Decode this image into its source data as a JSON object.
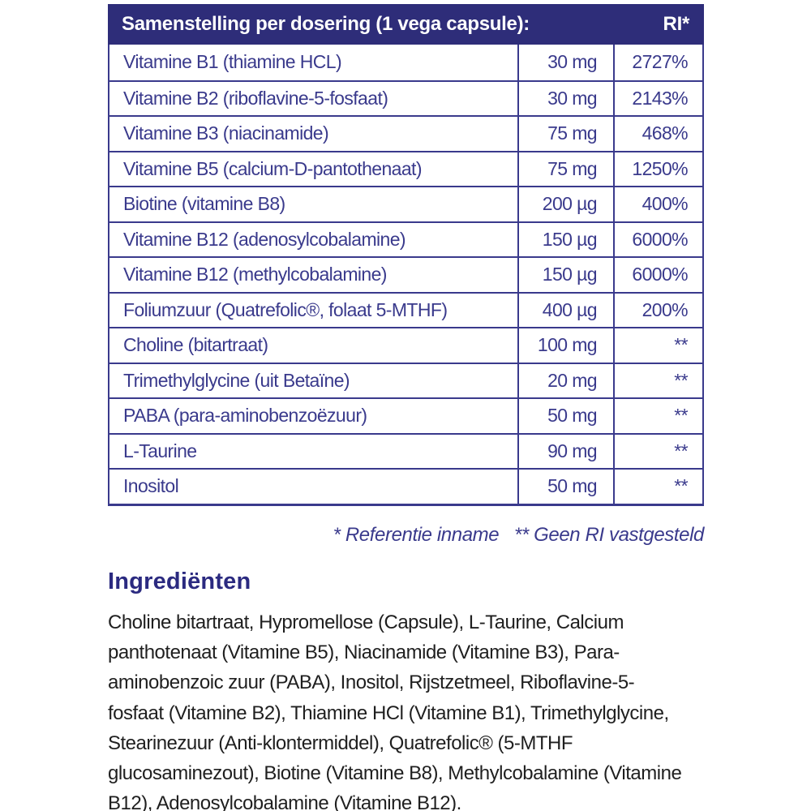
{
  "colors": {
    "header_bg": "#2e2d79",
    "table_ink": "#3a3a8c",
    "heading_ink": "#2b2a80",
    "body_ink": "#1f1f1f"
  },
  "table": {
    "header": {
      "title": "Samenstelling per dosering (1 vega capsule):",
      "ri_label": "RI*"
    },
    "rows": [
      {
        "name": "Vitamine B1 (thiamine HCL)",
        "amount": "30 mg",
        "ri": "2727%"
      },
      {
        "name": "Vitamine B2 (riboflavine-5-fosfaat)",
        "amount": "30 mg",
        "ri": "2143%"
      },
      {
        "name": "Vitamine B3 (niacinamide)",
        "amount": "75 mg",
        "ri": "468%"
      },
      {
        "name": "Vitamine B5 (calcium-D-pantothenaat)",
        "amount": "75 mg",
        "ri": "1250%"
      },
      {
        "name": "Biotine (vitamine B8)",
        "amount": "200 µg",
        "ri": "400%"
      },
      {
        "name": "Vitamine B12 (adenosylcobalamine)",
        "amount": "150 µg",
        "ri": "6000%"
      },
      {
        "name": "Vitamine B12 (methylcobalamine)",
        "amount": "150 µg",
        "ri": "6000%"
      },
      {
        "name": "Foliumzuur (Quatrefolic®, folaat 5-MTHF)",
        "amount": "400 µg",
        "ri": "200%"
      },
      {
        "name": "Choline (bitartraat)",
        "amount": "100 mg",
        "ri": "**"
      },
      {
        "name": "Trimethylglycine (uit Betaïne)",
        "amount": "20 mg",
        "ri": "**"
      },
      {
        "name": "PABA (para-aminobenzoëzuur)",
        "amount": "50 mg",
        "ri": "**"
      },
      {
        "name": "L-Taurine",
        "amount": "90 mg",
        "ri": "**"
      },
      {
        "name": "Inositol",
        "amount": "50 mg",
        "ri": "**"
      }
    ],
    "footnote": "* Referentie inname   ** Geen RI vastgesteld"
  },
  "ingredients": {
    "heading": "Ingrediënten",
    "body": "Choline bitartraat, Hypromellose (Capsule), L-Taurine, Calcium\npanthotenaat (Vitamine B5), Niacinamide (Vitamine B3), Para-\naminobenzoic zuur (PABA), Inositol, Rijstzetmeel, Riboflavine-5-\nfosfaat (Vitamine B2), Thiamine HCl (Vitamine B1), Trimethylglycine,\nStearinezuur (Anti-klontermiddel), Quatrefolic® (5-MTHF\nglucosaminezout), Biotine (Vitamine B8), Methylcobalamine (Vitamine\nB12), Adenosylcobalamine (Vitamine B12)."
  }
}
